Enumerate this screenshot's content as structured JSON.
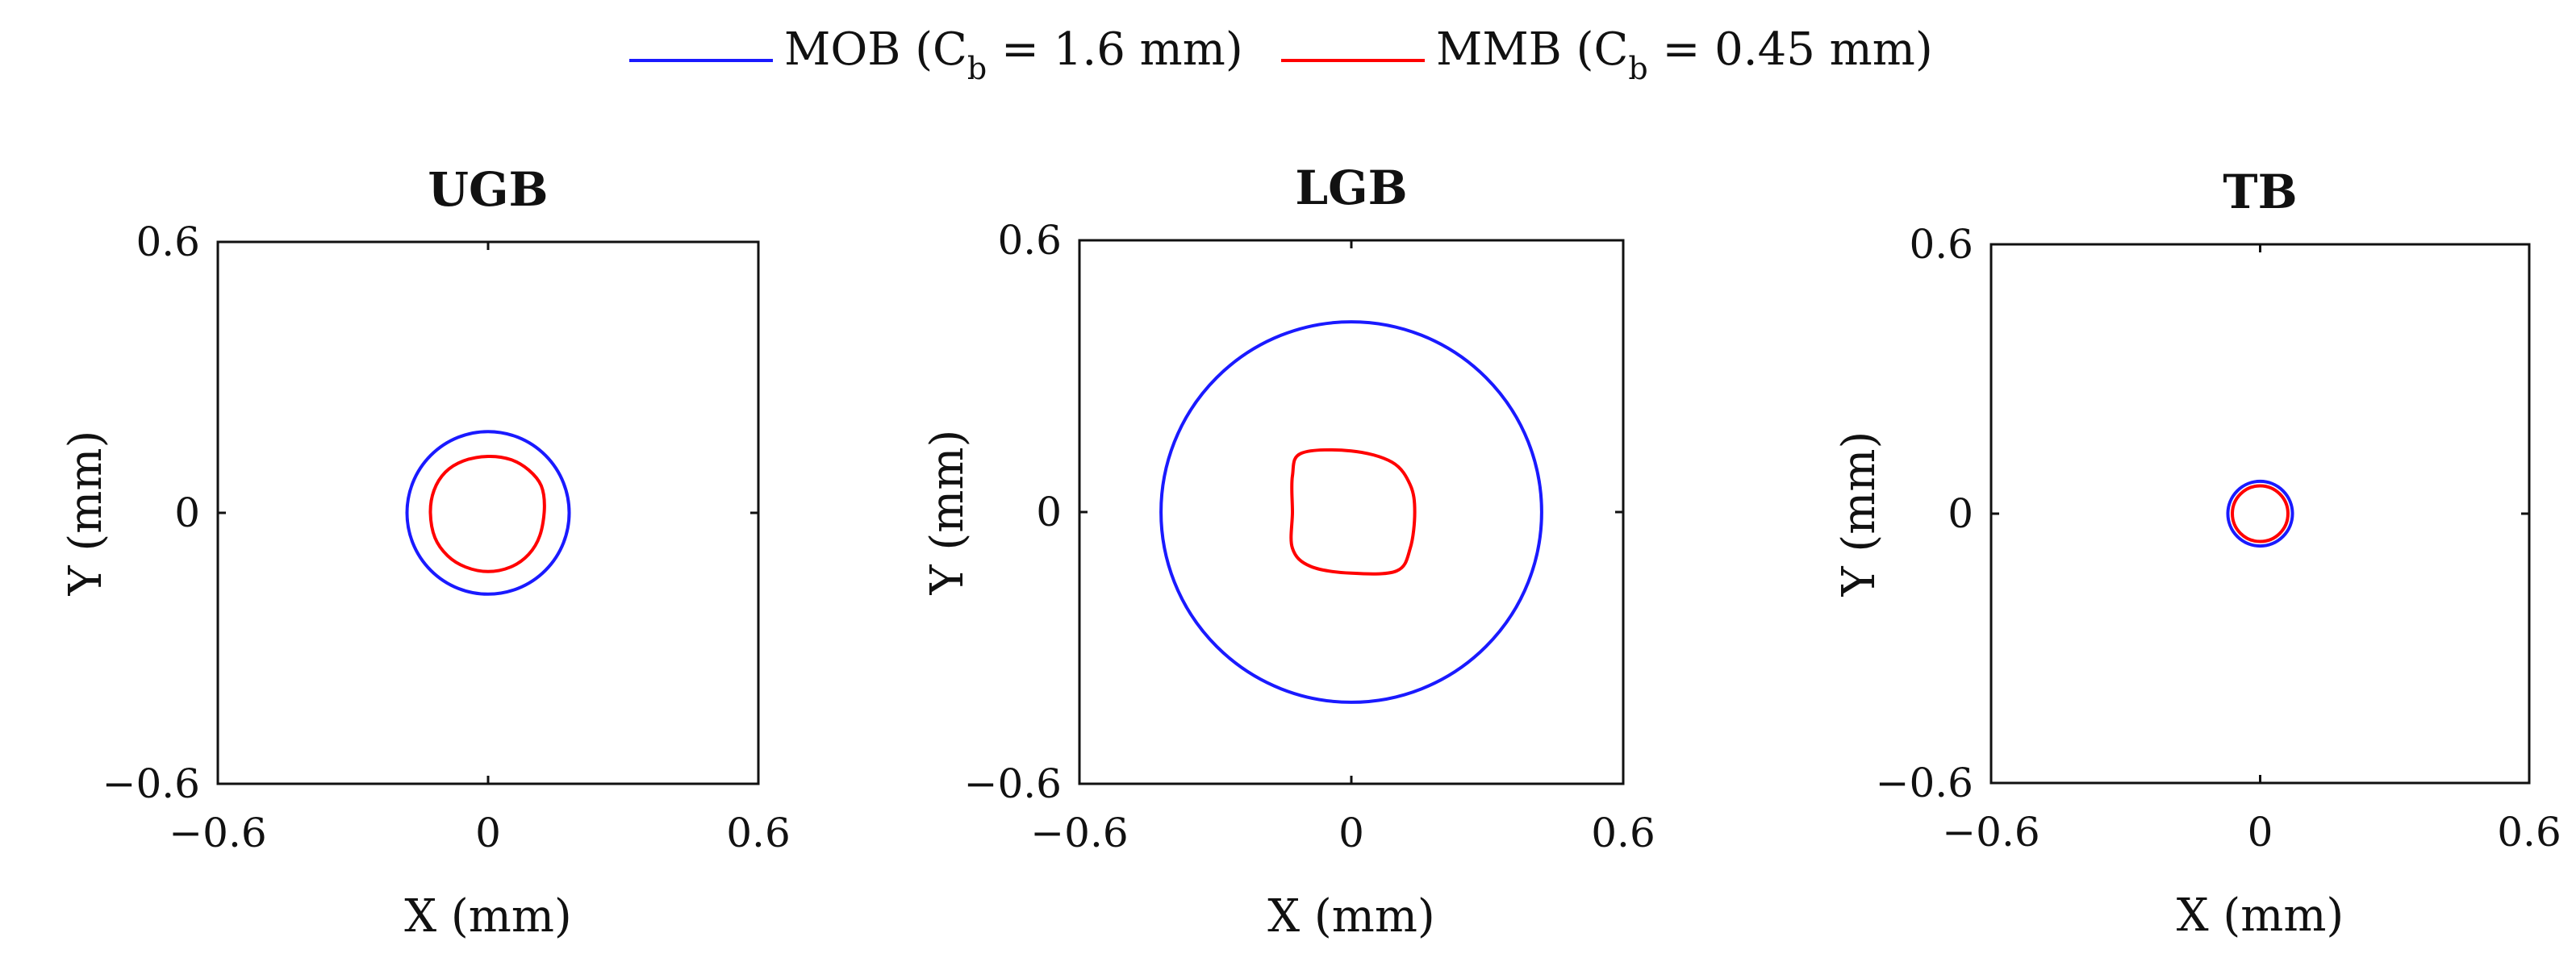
{
  "chart_data": {
    "legend": {
      "placement": "top-center",
      "entries": [
        {
          "series": "MOB",
          "label_pre": "MOB (C",
          "label_sub": "b",
          "label_post": " = 1.6 mm)",
          "color": "#1a1aff"
        },
        {
          "series": "MMB",
          "label_pre": "MMB (C",
          "label_sub": "b",
          "label_post": " = 0.45 mm)",
          "color": "#ff0000"
        }
      ]
    },
    "charts": [
      {
        "type": "line",
        "title": "UGB",
        "xlabel": "X (mm)",
        "ylabel": "Y (mm)",
        "xlim": [
          -0.6,
          0.6
        ],
        "ylim": [
          -0.6,
          0.6
        ],
        "xticks": [
          "−0.6",
          "0",
          "0.6"
        ],
        "yticks": [
          "−0.6",
          "0",
          "0.6"
        ],
        "grid": false,
        "series": [
          {
            "series": "MOB",
            "shape": "circle",
            "cx": 0,
            "cy": 0,
            "r": 0.18
          },
          {
            "series": "MMB",
            "shape": "closed-curve",
            "points": [
              [
                0.0,
                0.125
              ],
              [
                0.05,
                0.118
              ],
              [
                0.09,
                0.095
              ],
              [
                0.118,
                0.06
              ],
              [
                0.125,
                0.01
              ],
              [
                0.115,
                -0.05
              ],
              [
                0.09,
                -0.092
              ],
              [
                0.05,
                -0.12
              ],
              [
                0.0,
                -0.13
              ],
              [
                -0.05,
                -0.12
              ],
              [
                -0.09,
                -0.095
              ],
              [
                -0.118,
                -0.055
              ],
              [
                -0.128,
                0.0
              ],
              [
                -0.12,
                0.05
              ],
              [
                -0.095,
                0.09
              ],
              [
                -0.055,
                0.115
              ]
            ]
          }
        ]
      },
      {
        "type": "line",
        "title": "LGB",
        "xlabel": "X (mm)",
        "ylabel": "Y (mm)",
        "xlim": [
          -0.6,
          0.6
        ],
        "ylim": [
          -0.6,
          0.6
        ],
        "xticks": [
          "−0.6",
          "0",
          "0.6"
        ],
        "yticks": [
          "−0.6",
          "0",
          "0.6"
        ],
        "grid": false,
        "series": [
          {
            "series": "MOB",
            "shape": "circle",
            "cx": 0,
            "cy": 0,
            "r": 0.42
          },
          {
            "series": "MMB",
            "shape": "closed-curve",
            "points": [
              [
                -0.11,
                0.13
              ],
              [
                0.0,
                0.135
              ],
              [
                0.09,
                0.11
              ],
              [
                0.13,
                0.06
              ],
              [
                0.14,
                0.0
              ],
              [
                0.13,
                -0.08
              ],
              [
                0.1,
                -0.13
              ],
              [
                0.0,
                -0.135
              ],
              [
                -0.09,
                -0.12
              ],
              [
                -0.13,
                -0.08
              ],
              [
                -0.13,
                0.0
              ],
              [
                -0.13,
                0.08
              ]
            ]
          }
        ]
      },
      {
        "type": "line",
        "title": "TB",
        "xlabel": "X (mm)",
        "ylabel": "Y (mm)",
        "xlim": [
          -0.6,
          0.6
        ],
        "ylim": [
          -0.6,
          0.6
        ],
        "xticks": [
          "−0.6",
          "0",
          "0.6"
        ],
        "yticks": [
          "−0.6",
          "0",
          "0.6"
        ],
        "grid": false,
        "series": [
          {
            "series": "MOB",
            "shape": "circle",
            "cx": 0,
            "cy": 0,
            "r": 0.072
          },
          {
            "series": "MMB",
            "shape": "circle",
            "cx": 0,
            "cy": 0,
            "r": 0.062
          }
        ]
      }
    ]
  }
}
